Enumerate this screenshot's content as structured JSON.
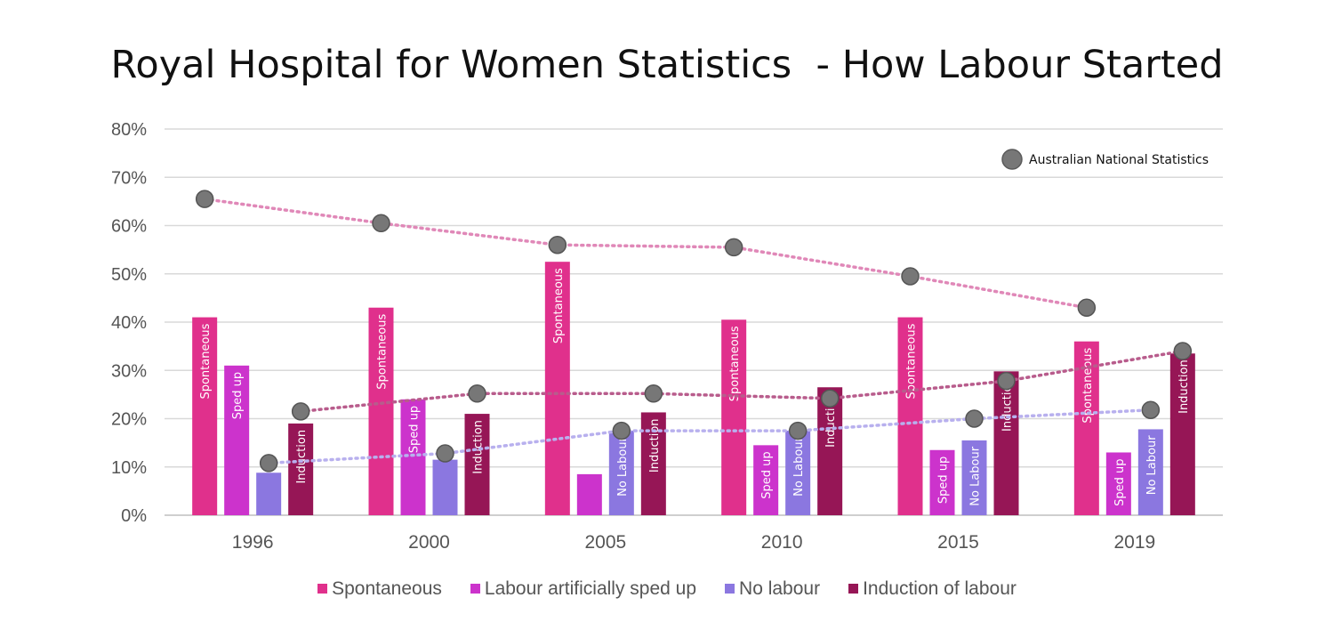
{
  "chart_data": {
    "type": "bar",
    "title": "Royal Hospital for Women Statistics  - How Labour Started",
    "categories": [
      "1996",
      "2000",
      "2005",
      "2010",
      "2015",
      "2019"
    ],
    "ylim": [
      0,
      80
    ],
    "yticks": [
      "0%",
      "10%",
      "20%",
      "30%",
      "40%",
      "50%",
      "60%",
      "70%",
      "80%"
    ],
    "grid": true,
    "legend_position": "bottom",
    "series": [
      {
        "name": "Spontaneous",
        "color": "#e0308c",
        "values": [
          41,
          43,
          52.5,
          40.5,
          41,
          36
        ],
        "bar_labels": [
          "Spontaneous",
          "Spontaneous",
          "Spontaneous",
          "Spontaneous",
          "Spontaneous",
          "Spontaneous"
        ]
      },
      {
        "name": "Labour artificially sped up",
        "color": "#cc33cc",
        "values": [
          31,
          24,
          8.5,
          14.5,
          13.5,
          13
        ],
        "bar_labels": [
          "Sped up",
          "Sped up",
          "",
          "Sped up",
          "Sped up",
          "Sped up"
        ]
      },
      {
        "name": "No labour",
        "color": "#8b77e0",
        "values": [
          8.8,
          11.5,
          17.5,
          17.5,
          15.5,
          17.8
        ],
        "bar_labels": [
          "",
          "",
          "No Labour",
          "No Labour",
          "No Labour",
          "No Labour"
        ]
      },
      {
        "name": "Induction of labour",
        "color": "#961656",
        "values": [
          19,
          21,
          21.3,
          26.5,
          29.8,
          33.5
        ],
        "bar_labels": [
          "Induction",
          "Induction",
          "Induction",
          "Induction",
          "Induction",
          "Induction"
        ]
      }
    ],
    "national_statistics": {
      "legend_label": "Australian National Statistics",
      "marker_color": "#777777",
      "series": [
        {
          "relates_to": "Spontaneous",
          "line_color": "#e088b8",
          "values": [
            65.5,
            60.5,
            56,
            55.5,
            49.5,
            43
          ]
        },
        {
          "relates_to": "Induction of labour",
          "line_color": "#b85c8c",
          "values": [
            21.5,
            25.2,
            25.2,
            24.2,
            27.8,
            34
          ]
        },
        {
          "relates_to": "No labour",
          "line_color": "#b8b0ee",
          "values": [
            10.8,
            12.8,
            17.5,
            17.5,
            20,
            21.8
          ]
        }
      ]
    }
  }
}
